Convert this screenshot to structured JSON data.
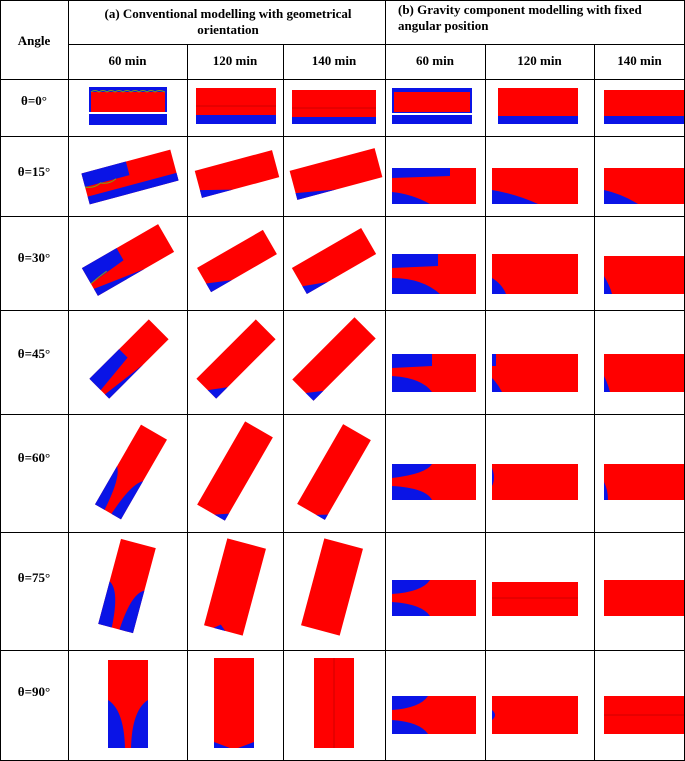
{
  "table": {
    "angle_header": "Angle",
    "group_a_title": "(a)  Conventional modelling with geometrical orientation",
    "group_b_title": "(b)  Gravity component modelling with fixed angular position",
    "group_a_times": [
      "60 min",
      "120 min",
      "140 min"
    ],
    "group_b_times": [
      "60 min",
      "120 min",
      "140 min"
    ],
    "angles": [
      "θ=0°",
      "θ=15°",
      "θ=30°",
      "θ=45°",
      "θ=60°",
      "θ=75°",
      "θ=90°"
    ]
  },
  "colors": {
    "liquid": "#ff0000",
    "vapor": "#0a14e6",
    "interface": "#7fa010",
    "grid": "#000000"
  }
}
